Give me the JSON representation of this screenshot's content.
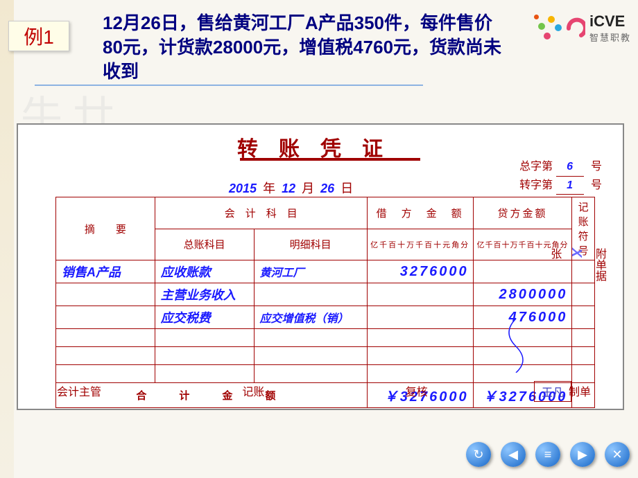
{
  "header": {
    "example_label": "例1",
    "title": "12月26日，售给黄河工厂A产品350件，每件售价80元，计货款28000元，增值税4760元，货款尚未收到",
    "logo_main": "iCVE",
    "logo_sub": "智慧职教",
    "logo_dot_colors": [
      "#f7b500",
      "#73c54b",
      "#e64571",
      "#2aa7df",
      "#e85412"
    ]
  },
  "voucher": {
    "title": "转账凭证",
    "zong_label": "总字第",
    "zong_no": "6",
    "zhuan_label": "转字第",
    "zhuan_no": "1",
    "no_unit": "号",
    "year": "2015",
    "year_unit": "年",
    "month": "12",
    "month_unit": "月",
    "day": "26",
    "day_unit": "日",
    "col_summary": "摘　　要",
    "col_subject": "会　计　科　目",
    "col_ledger": "总账科目",
    "col_detail": "明细科目",
    "col_debit": "借　方　金　额",
    "col_credit": "贷方金额",
    "col_mark": "记账符号",
    "digit_headers": [
      "亿",
      "千",
      "百",
      "十",
      "万",
      "千",
      "百",
      "十",
      "元",
      "角",
      "分"
    ],
    "rows": [
      {
        "summary": "销售A产品",
        "ledger": "应收账款",
        "detail": "黄河工厂",
        "debit": "3276000",
        "credit": ""
      },
      {
        "summary": "",
        "ledger": "主营业务收入",
        "detail": "",
        "debit": "",
        "credit": "2800000"
      },
      {
        "summary": "",
        "ledger": "应交税费",
        "detail": "应交增值税（销）",
        "debit": "",
        "credit": "476000"
      },
      {
        "summary": "",
        "ledger": "",
        "detail": "",
        "debit": "",
        "credit": ""
      },
      {
        "summary": "",
        "ledger": "",
        "detail": "",
        "debit": "",
        "credit": ""
      },
      {
        "summary": "",
        "ledger": "",
        "detail": "",
        "debit": "",
        "credit": ""
      }
    ],
    "total_label": "合　计　金　额",
    "total_debit": "￥3276000",
    "total_credit": "￥3276000",
    "attach_label": "附单据",
    "attach_count": "X",
    "attach_unit": "张",
    "sig_supervisor": "会计主管",
    "sig_bookkeep": "记账",
    "sig_review": "复核",
    "sig_prepare": "制单",
    "preparer_name": "王凡"
  },
  "nav": {
    "refresh": "↻",
    "prev": "◀",
    "menu": "≡",
    "next": "▶",
    "close": "✕"
  },
  "colors": {
    "title_color": "#000080",
    "voucher_line": "#a00000",
    "value_color": "#1a1aff"
  }
}
